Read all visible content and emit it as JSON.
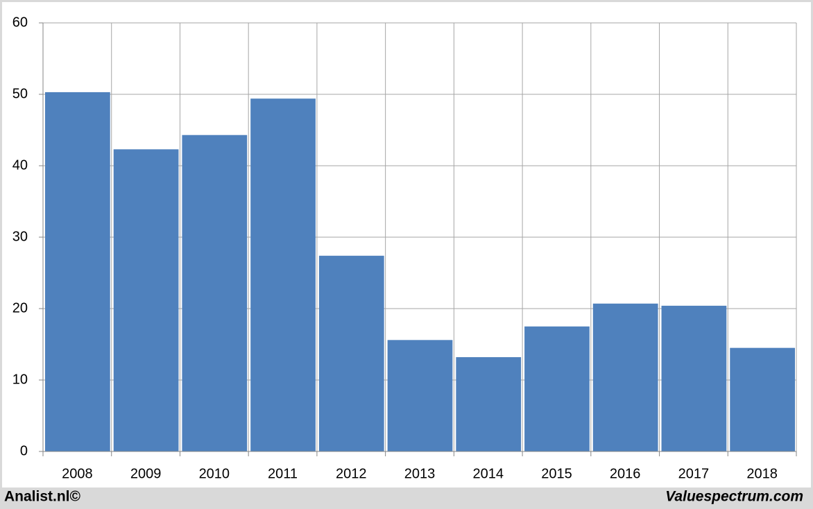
{
  "chart_data": {
    "type": "bar",
    "categories": [
      "2008",
      "2009",
      "2010",
      "2011",
      "2012",
      "2013",
      "2014",
      "2015",
      "2016",
      "2017",
      "2018"
    ],
    "values": [
      50.3,
      42.3,
      44.3,
      49.4,
      27.4,
      15.6,
      13.2,
      17.5,
      20.7,
      20.4,
      14.5
    ],
    "color": "#4f81bd",
    "ylim": [
      0,
      60
    ],
    "yticks": [
      0,
      10,
      20,
      30,
      40,
      50,
      60
    ],
    "grid": true,
    "source": "Analist.nl©",
    "credit": "Valuespectrum.com"
  }
}
